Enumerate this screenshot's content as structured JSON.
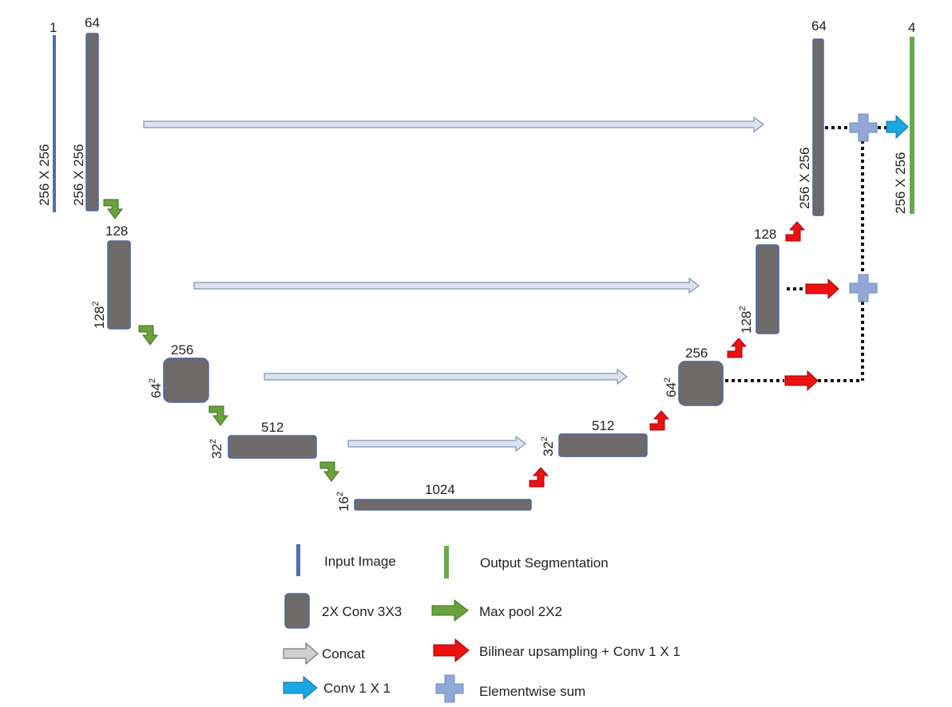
{
  "input": {
    "channels": "1",
    "size": "256 X 256",
    "color": "#4a6cc0"
  },
  "output": {
    "channels": "4",
    "size": "256 X 256",
    "color": "#6aa84f"
  },
  "encoder": [
    {
      "channels": "64",
      "size": "256 X 256",
      "size_sup": ""
    },
    {
      "channels": "128",
      "size": "128",
      "size_sup": "2"
    },
    {
      "channels": "256",
      "size": "64",
      "size_sup": "2"
    },
    {
      "channels": "512",
      "size": "32",
      "size_sup": "2"
    }
  ],
  "bottleneck": {
    "channels": "1024",
    "size": "16",
    "size_sup": "2"
  },
  "decoder": [
    {
      "channels": "512",
      "size": "32",
      "size_sup": "2"
    },
    {
      "channels": "256",
      "size": "64",
      "size_sup": "2"
    },
    {
      "channels": "128",
      "size": "128",
      "size_sup": "2"
    },
    {
      "channels": "64",
      "size": "256 X 256",
      "size_sup": ""
    }
  ],
  "legend": {
    "input_image": "Input Image",
    "output_segmentation": "Output Segmentation",
    "conv": "2X Conv 3X3",
    "maxpool": "Max pool 2X2",
    "concat": "Concat",
    "upsample": "Bilinear upsampling + Conv 1 X 1",
    "conv1x1": "Conv 1 X 1",
    "elementwise_sum": "Elementwise sum"
  },
  "colors": {
    "block": "#6f6a6a",
    "maxpool": "#6aa23c",
    "upsample": "#ee1111",
    "concat": "#dde3ee",
    "conv1x1": "#1aa7e4",
    "elementwise_sum": "#8fa8d8"
  }
}
